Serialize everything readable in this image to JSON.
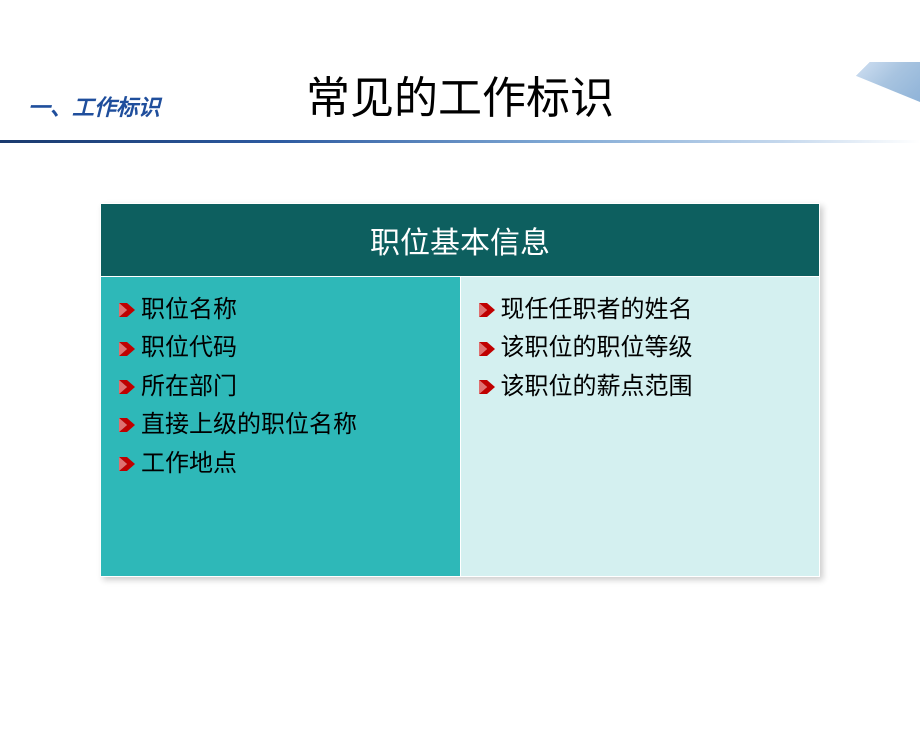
{
  "section_label": "一、工作标识",
  "main_title": "常见的工作标识",
  "table": {
    "header": "职位基本信息",
    "header_bg": "#0d5f5f",
    "header_color": "#ffffff",
    "left_bg": "#2eb8b8",
    "right_bg": "#d4f0f0",
    "bullet_color_primary": "#c00000",
    "bullet_color_secondary": "#e07070",
    "font_size_header": 30,
    "font_size_item": 24,
    "left_items": [
      "职位名称",
      "职位代码",
      "所在部门",
      "直接上级的职位名称",
      "工作地点"
    ],
    "right_items": [
      "现任任职者的姓名",
      "该职位的职位等级",
      "该职位的薪点范围"
    ]
  },
  "colors": {
    "section_label": "#1f4e9c",
    "title": "#000000",
    "divider_start": "#1a3a6e",
    "divider_end": "#c5d8ed"
  }
}
